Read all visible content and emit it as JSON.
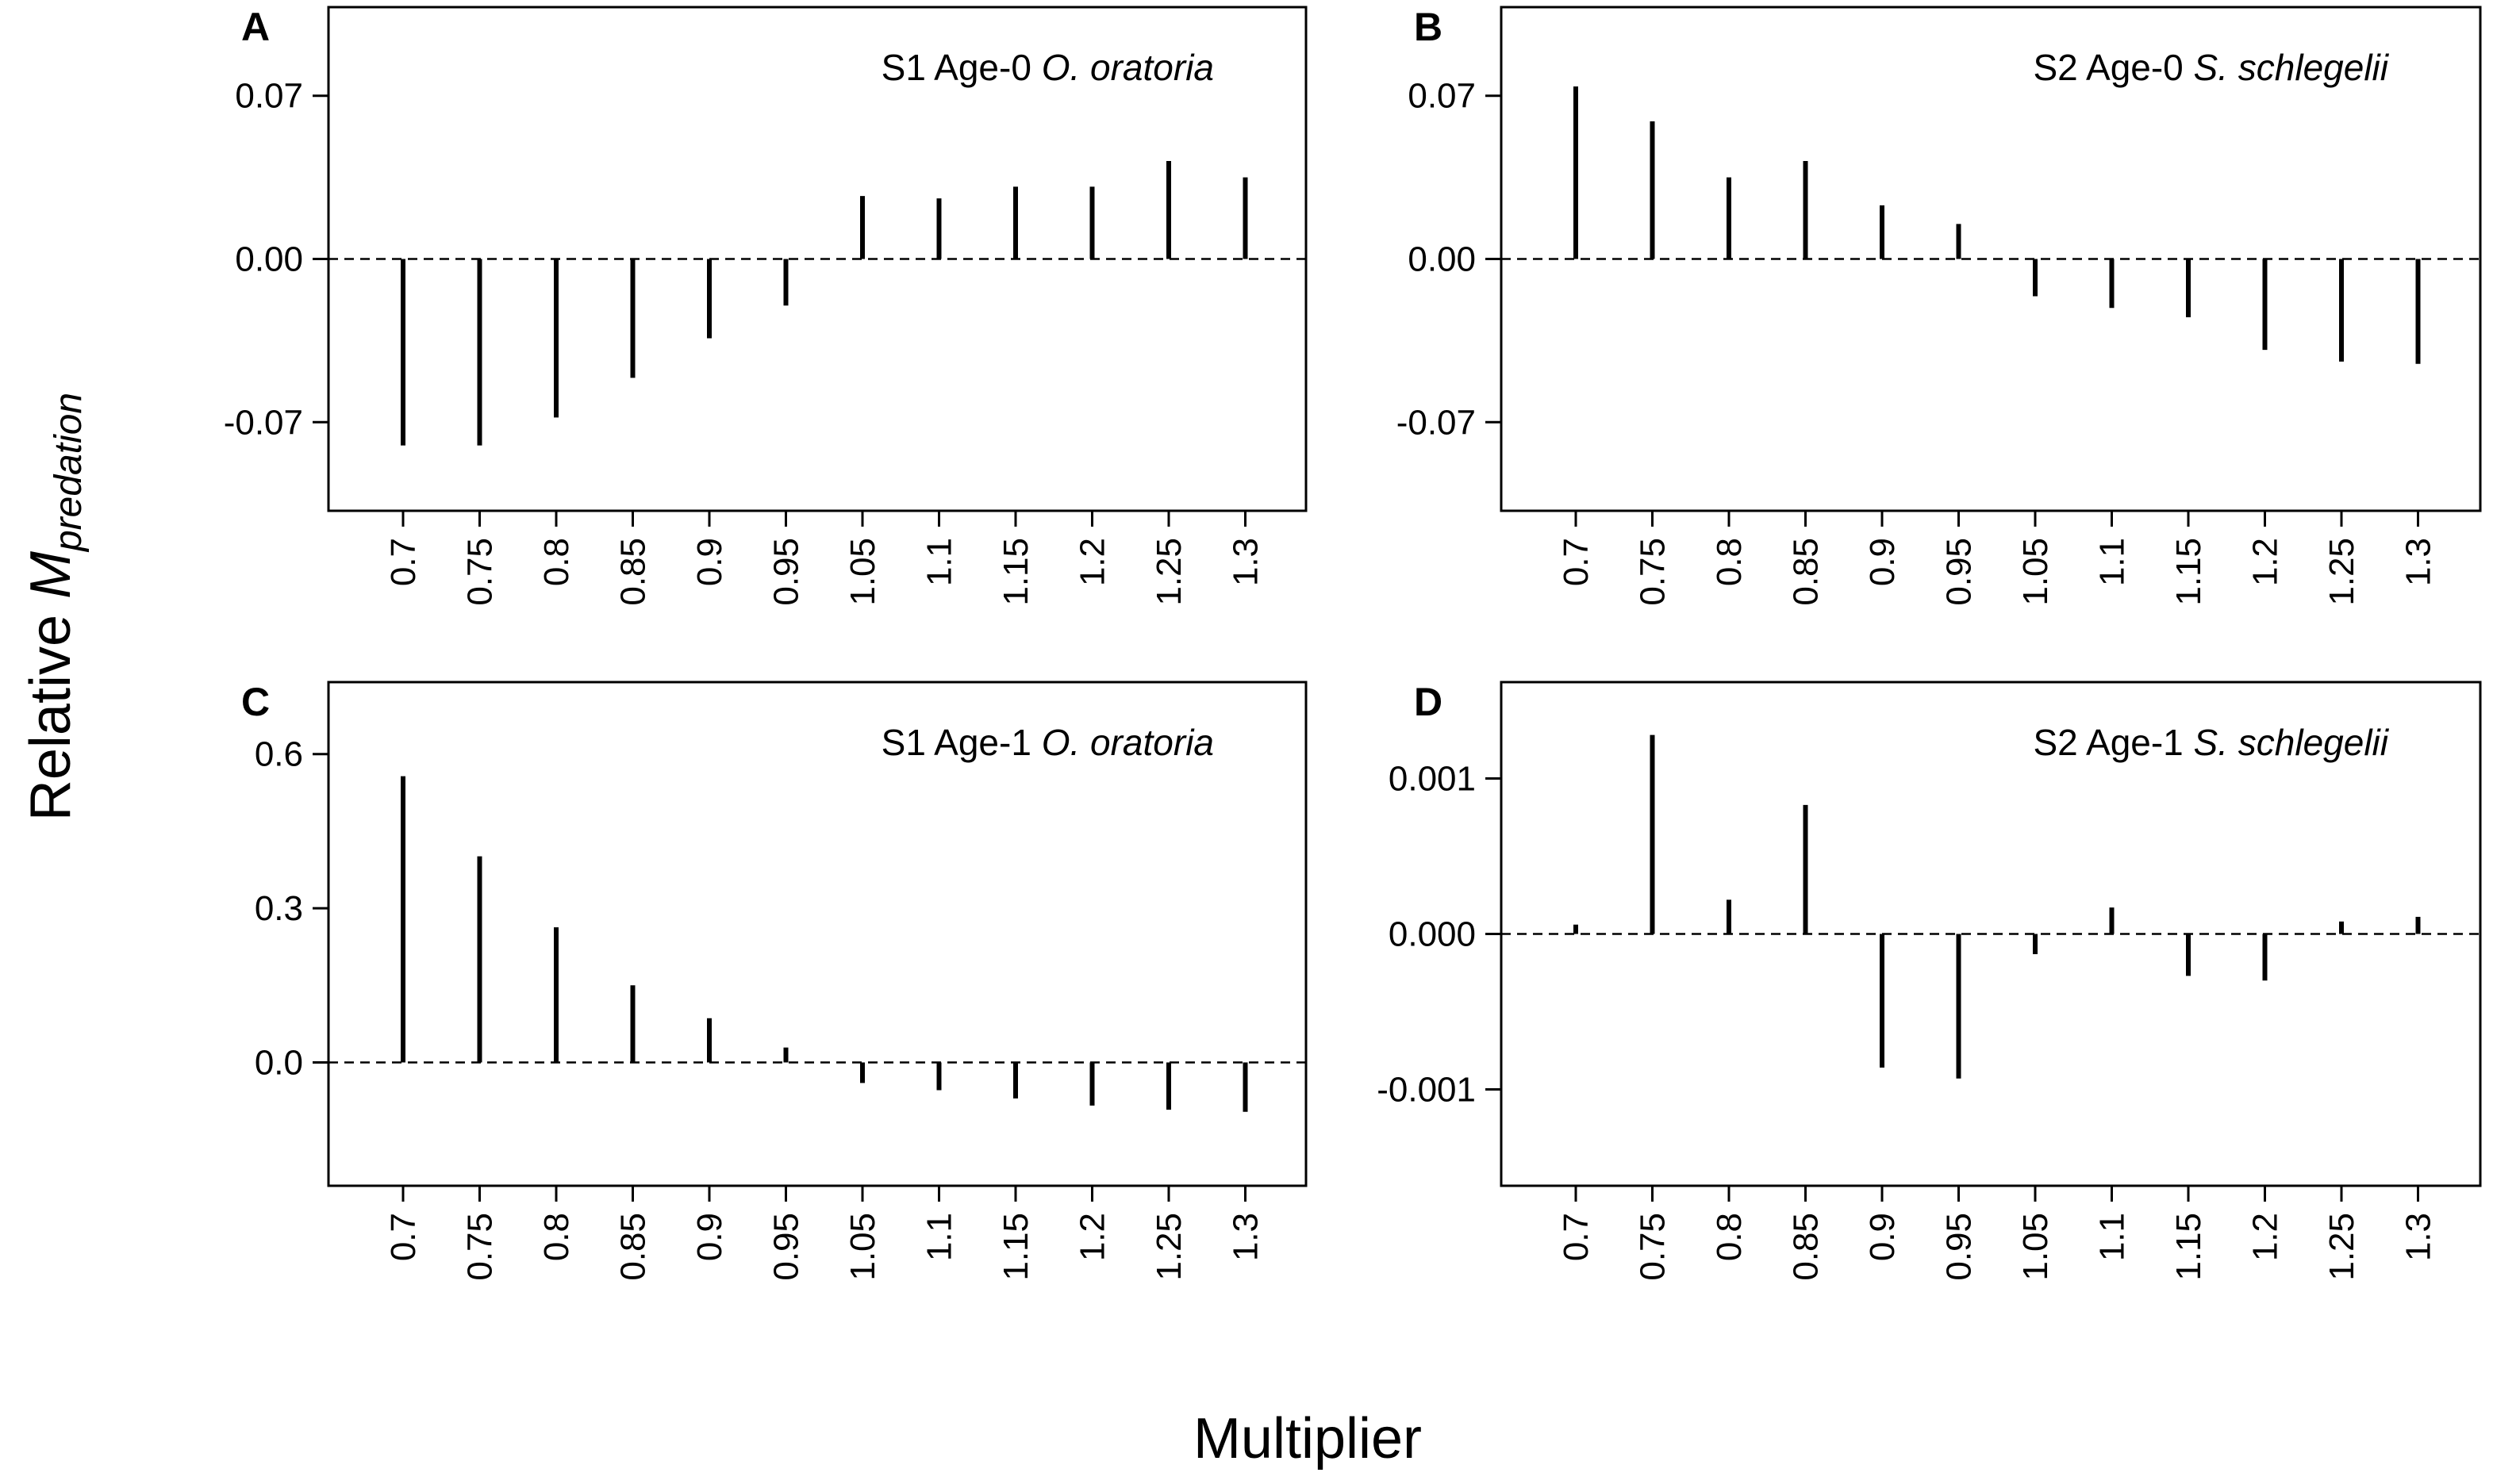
{
  "figure": {
    "ylabel_main": "Relative ",
    "ylabel_symbol": "M",
    "ylabel_subscript": "predation",
    "xlabel": "Multiplier"
  },
  "chart_data": [
    {
      "type": "bar",
      "panel": "A",
      "title_prefix": "S1  Age-0 ",
      "title_species": "O. oratoria",
      "categories": [
        "0.7",
        "0.75",
        "0.8",
        "0.85",
        "0.9",
        "0.95",
        "1.05",
        "1.1",
        "1.15",
        "1.2",
        "1.25",
        "1.3"
      ],
      "values": [
        -0.08,
        -0.08,
        -0.068,
        -0.051,
        -0.034,
        -0.02,
        0.027,
        0.026,
        0.031,
        0.031,
        0.042,
        0.035
      ],
      "ylim": [
        -0.108,
        0.108
      ],
      "yticks": [
        -0.07,
        0.0,
        0.07
      ],
      "ytick_labels": [
        "-0.07",
        "0.00",
        "0.07"
      ],
      "xlabel": "Multiplier",
      "ylabel": "Relative M predation"
    },
    {
      "type": "bar",
      "panel": "B",
      "title_prefix": "S2  Age-0 ",
      "title_species": "S. schlegelii",
      "categories": [
        "0.7",
        "0.75",
        "0.8",
        "0.85",
        "0.9",
        "0.95",
        "1.05",
        "1.1",
        "1.15",
        "1.2",
        "1.25",
        "1.3"
      ],
      "values": [
        0.074,
        0.059,
        0.035,
        0.042,
        0.023,
        0.015,
        -0.016,
        -0.021,
        -0.025,
        -0.039,
        -0.044,
        -0.045
      ],
      "ylim": [
        -0.108,
        0.108
      ],
      "yticks": [
        -0.07,
        0.0,
        0.07
      ],
      "ytick_labels": [
        "-0.07",
        "0.00",
        "0.07"
      ],
      "xlabel": "Multiplier",
      "ylabel": "Relative M predation"
    },
    {
      "type": "bar",
      "panel": "C",
      "title_prefix": "S1  Age-1 ",
      "title_species": "O. oratoria",
      "categories": [
        "0.7",
        "0.75",
        "0.8",
        "0.85",
        "0.9",
        "0.95",
        "1.05",
        "1.1",
        "1.15",
        "1.2",
        "1.25",
        "1.3"
      ],
      "values": [
        0.557,
        0.401,
        0.263,
        0.15,
        0.086,
        0.029,
        -0.04,
        -0.054,
        -0.07,
        -0.084,
        -0.092,
        -0.096
      ],
      "ylim": [
        -0.24,
        0.74
      ],
      "yticks": [
        0.0,
        0.3,
        0.6
      ],
      "ytick_labels": [
        "0.0",
        "0.3",
        "0.6"
      ],
      "xlabel": "Multiplier",
      "ylabel": "Relative M predation"
    },
    {
      "type": "bar",
      "panel": "D",
      "title_prefix": "S2  Age-1 ",
      "title_species": "S. schlegelii",
      "categories": [
        "0.7",
        "0.75",
        "0.8",
        "0.85",
        "0.9",
        "0.95",
        "1.05",
        "1.1",
        "1.15",
        "1.2",
        "1.25",
        "1.3"
      ],
      "values": [
        6e-05,
        0.00128,
        0.00022,
        0.00083,
        -0.00086,
        -0.00093,
        -0.00013,
        0.00017,
        -0.00027,
        -0.0003,
        8e-05,
        0.00011
      ],
      "ylim": [
        -0.00162,
        0.00162
      ],
      "yticks": [
        -0.001,
        0.0,
        0.001
      ],
      "ytick_labels": [
        "-0.001",
        "0.000",
        "0.001"
      ],
      "xlabel": "Multiplier",
      "ylabel": "Relative M predation"
    }
  ]
}
